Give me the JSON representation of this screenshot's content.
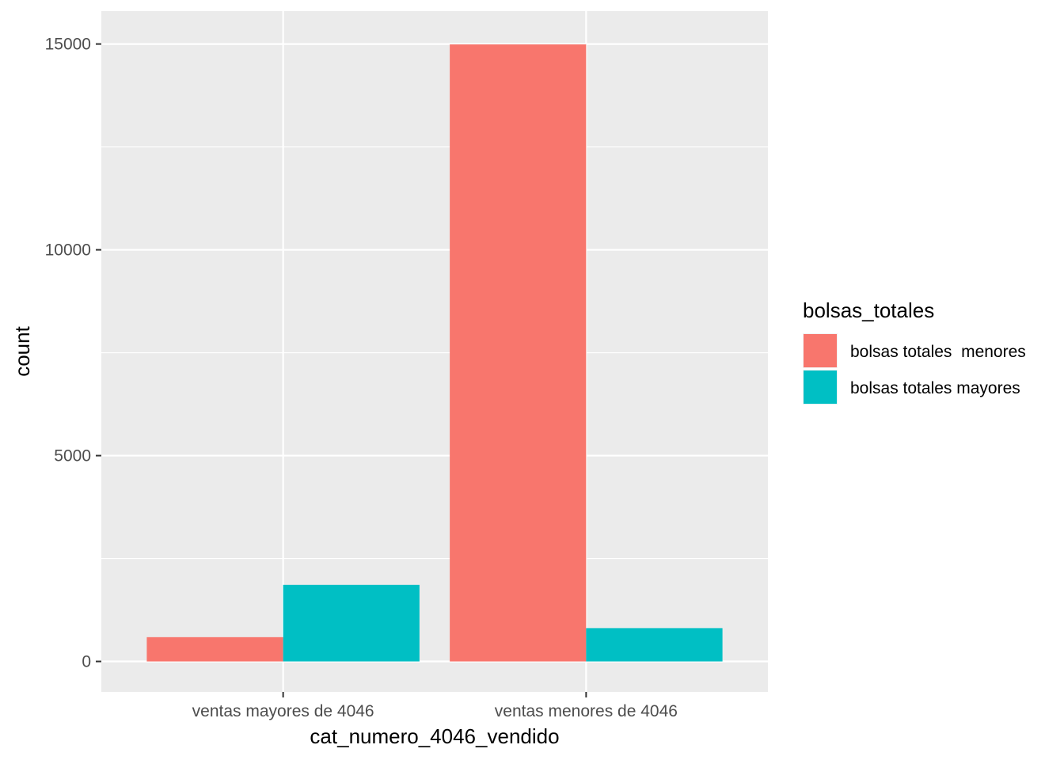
{
  "chart_data": {
    "type": "bar",
    "position": "dodge",
    "xlabel": "cat_numero_4046_vendido",
    "ylabel": "count",
    "categories": [
      "ventas mayores de 4046",
      "ventas menores de 4046"
    ],
    "series": [
      {
        "name": "bolsas totales  menores",
        "color": "#F8766D",
        "values": [
          590,
          14990
        ]
      },
      {
        "name": "bolsas totales mayores",
        "color": "#00BFC4",
        "values": [
          1860,
          810
        ]
      }
    ],
    "yticks": [
      0,
      5000,
      10000,
      15000
    ],
    "ylim": [
      -740,
      15800
    ],
    "grid": true,
    "panel_background": "#EBEBEB",
    "grid_color": "#FFFFFF",
    "legend": {
      "title": "bolsas_totales",
      "placement": "right"
    }
  }
}
